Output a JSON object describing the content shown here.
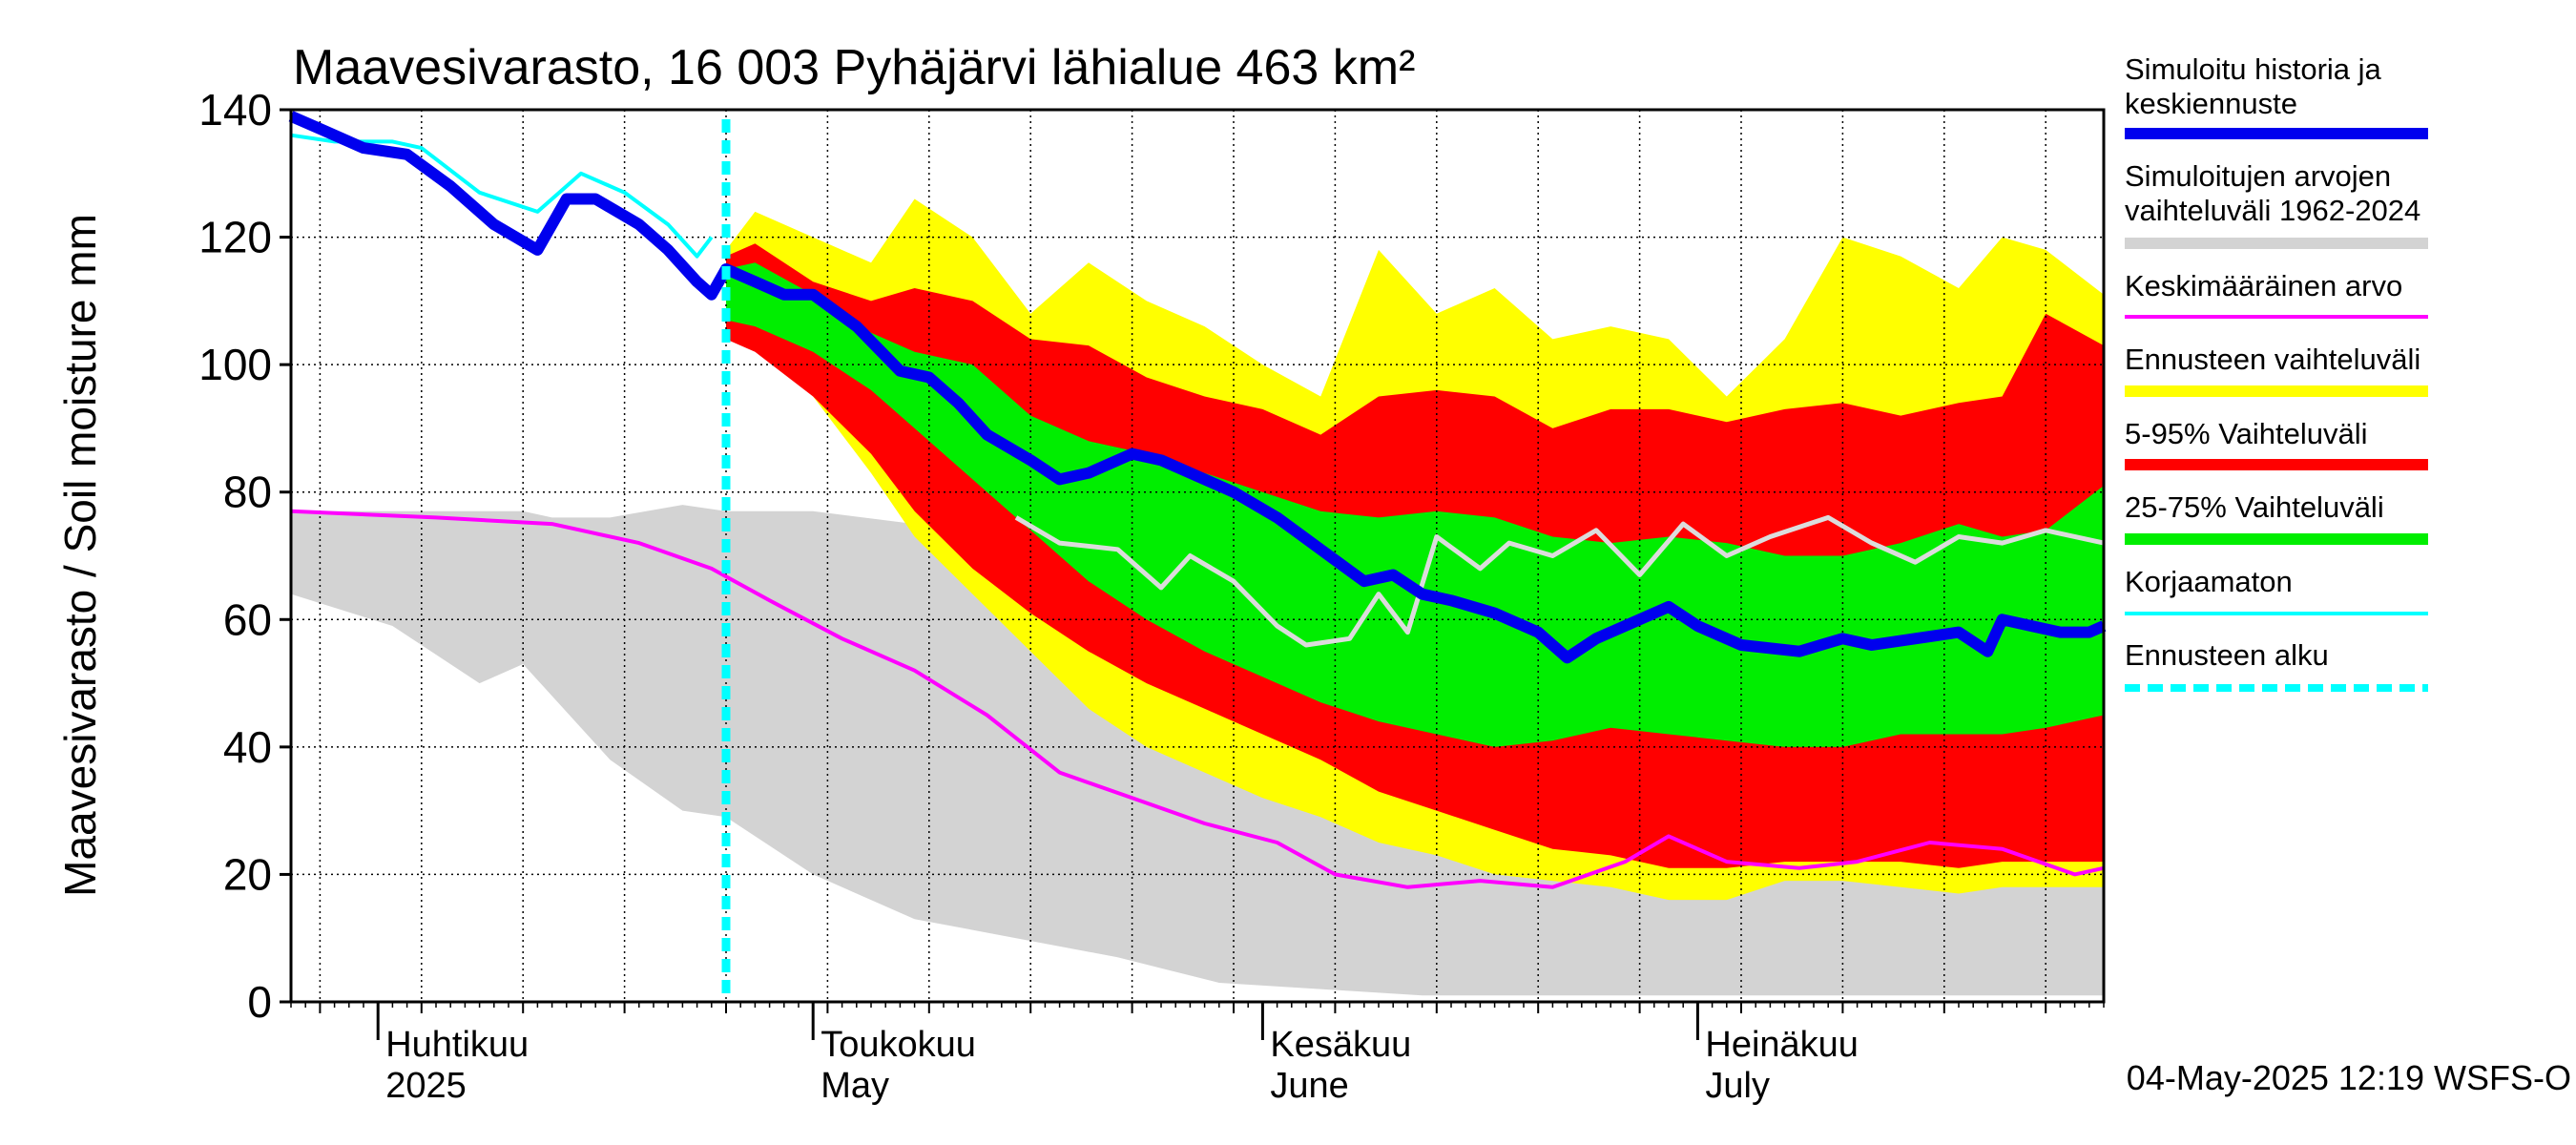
{
  "chart_data": {
    "type": "area",
    "title": "Maavesivarasto, 16 003 Pyhäjärvi lähialue 463 km²",
    "ylabel": "Maavesivarasto / Soil moisture   mm",
    "ylim": [
      0,
      140
    ],
    "yticks": [
      0,
      20,
      40,
      60,
      80,
      100,
      120,
      140
    ],
    "x_start": "2025-03-26",
    "x_end": "2025-07-29",
    "forecast_start": "2025-04-25",
    "month_labels": [
      {
        "date": "2025-04-01",
        "fi": "Huhtikuu",
        "en": "2025"
      },
      {
        "date": "2025-05-01",
        "fi": "Toukokuu",
        "en": "May"
      },
      {
        "date": "2025-06-01",
        "fi": "Kesäkuu",
        "en": "June"
      },
      {
        "date": "2025-07-01",
        "fi": "Heinäkuu",
        "en": "July"
      }
    ],
    "timestamp": "04-May-2025 12:19 WSFS-O",
    "legend": [
      {
        "label": "Simuloitu historia ja keskiennuste",
        "color": "#0000ee",
        "style": "thick"
      },
      {
        "label": "Simuloitujen arvojen vaihteluväli 1962-2024",
        "color": "#d3d3d3",
        "style": "thick"
      },
      {
        "label": "Keskimääräinen arvo",
        "color": "#ff00ff",
        "style": "thin"
      },
      {
        "label": "Ennusteen vaihteluväli",
        "color": "#ffff00",
        "style": "thick"
      },
      {
        "label": "5-95% Vaihteluväli",
        "color": "#ff0000",
        "style": "thick"
      },
      {
        "label": "25-75% Vaihteluväli",
        "color": "#00ee00",
        "style": "thick"
      },
      {
        "label": "Korjaamaton",
        "color": "#00ffff",
        "style": "thin"
      },
      {
        "label": "Ennusteen alku",
        "color": "#00ffff",
        "style": "dashed"
      }
    ],
    "series": {
      "hist_range": [
        {
          "x": "2025-03-26",
          "lo": 64,
          "hi": 77
        },
        {
          "x": "2025-04-02",
          "lo": 59,
          "hi": 77
        },
        {
          "x": "2025-04-08",
          "lo": 50,
          "hi": 77
        },
        {
          "x": "2025-04-11",
          "lo": 53,
          "hi": 77
        },
        {
          "x": "2025-04-13",
          "lo": 48,
          "hi": 76
        },
        {
          "x": "2025-04-17",
          "lo": 38,
          "hi": 76
        },
        {
          "x": "2025-04-22",
          "lo": 30,
          "hi": 78
        },
        {
          "x": "2025-04-25",
          "lo": 29,
          "hi": 77
        },
        {
          "x": "2025-05-01",
          "lo": 20,
          "hi": 77
        },
        {
          "x": "2025-05-08",
          "lo": 13,
          "hi": 75
        },
        {
          "x": "2025-05-15",
          "lo": 10,
          "hi": 73
        },
        {
          "x": "2025-05-22",
          "lo": 7,
          "hi": 74
        },
        {
          "x": "2025-05-29",
          "lo": 3,
          "hi": 75
        },
        {
          "x": "2025-06-05",
          "lo": 2,
          "hi": 73
        },
        {
          "x": "2025-06-12",
          "lo": 1,
          "hi": 70
        },
        {
          "x": "2025-06-19",
          "lo": 1,
          "hi": 65
        },
        {
          "x": "2025-06-26",
          "lo": 1,
          "hi": 45
        },
        {
          "x": "2025-07-03",
          "lo": 1,
          "hi": 30
        },
        {
          "x": "2025-07-10",
          "lo": 1,
          "hi": 22
        },
        {
          "x": "2025-07-17",
          "lo": 1,
          "hi": 20
        },
        {
          "x": "2025-07-24",
          "lo": 1,
          "hi": 20
        },
        {
          "x": "2025-07-29",
          "lo": 1,
          "hi": 19
        }
      ],
      "forecast_range": [
        {
          "x": "2025-04-25",
          "lo": 105,
          "hi": 118
        },
        {
          "x": "2025-04-27",
          "lo": 103,
          "hi": 124
        },
        {
          "x": "2025-05-01",
          "lo": 95,
          "hi": 120
        },
        {
          "x": "2025-05-05",
          "lo": 83,
          "hi": 116
        },
        {
          "x": "2025-05-08",
          "lo": 73,
          "hi": 126
        },
        {
          "x": "2025-05-12",
          "lo": 64,
          "hi": 120
        },
        {
          "x": "2025-05-16",
          "lo": 55,
          "hi": 108
        },
        {
          "x": "2025-05-20",
          "lo": 46,
          "hi": 116
        },
        {
          "x": "2025-05-24",
          "lo": 40,
          "hi": 110
        },
        {
          "x": "2025-05-28",
          "lo": 36,
          "hi": 106
        },
        {
          "x": "2025-06-01",
          "lo": 32,
          "hi": 100
        },
        {
          "x": "2025-06-05",
          "lo": 29,
          "hi": 95
        },
        {
          "x": "2025-06-09",
          "lo": 25,
          "hi": 118
        },
        {
          "x": "2025-06-13",
          "lo": 23,
          "hi": 108
        },
        {
          "x": "2025-06-17",
          "lo": 20,
          "hi": 112
        },
        {
          "x": "2025-06-21",
          "lo": 19,
          "hi": 104
        },
        {
          "x": "2025-06-25",
          "lo": 18,
          "hi": 106
        },
        {
          "x": "2025-06-29",
          "lo": 16,
          "hi": 104
        },
        {
          "x": "2025-07-03",
          "lo": 16,
          "hi": 95
        },
        {
          "x": "2025-07-07",
          "lo": 19,
          "hi": 104
        },
        {
          "x": "2025-07-11",
          "lo": 19,
          "hi": 120
        },
        {
          "x": "2025-07-15",
          "lo": 18,
          "hi": 117
        },
        {
          "x": "2025-07-19",
          "lo": 17,
          "hi": 112
        },
        {
          "x": "2025-07-22",
          "lo": 18,
          "hi": 120
        },
        {
          "x": "2025-07-25",
          "lo": 18,
          "hi": 118
        },
        {
          "x": "2025-07-29",
          "lo": 18,
          "hi": 111
        }
      ],
      "p5_95": [
        {
          "x": "2025-04-25",
          "lo": 104,
          "hi": 117
        },
        {
          "x": "2025-04-27",
          "lo": 102,
          "hi": 119
        },
        {
          "x": "2025-05-01",
          "lo": 95,
          "hi": 113
        },
        {
          "x": "2025-05-05",
          "lo": 86,
          "hi": 110
        },
        {
          "x": "2025-05-08",
          "lo": 77,
          "hi": 112
        },
        {
          "x": "2025-05-12",
          "lo": 68,
          "hi": 110
        },
        {
          "x": "2025-05-16",
          "lo": 61,
          "hi": 104
        },
        {
          "x": "2025-05-20",
          "lo": 55,
          "hi": 103
        },
        {
          "x": "2025-05-24",
          "lo": 50,
          "hi": 98
        },
        {
          "x": "2025-05-28",
          "lo": 46,
          "hi": 95
        },
        {
          "x": "2025-06-01",
          "lo": 42,
          "hi": 93
        },
        {
          "x": "2025-06-05",
          "lo": 38,
          "hi": 89
        },
        {
          "x": "2025-06-09",
          "lo": 33,
          "hi": 95
        },
        {
          "x": "2025-06-13",
          "lo": 30,
          "hi": 96
        },
        {
          "x": "2025-06-17",
          "lo": 27,
          "hi": 95
        },
        {
          "x": "2025-06-21",
          "lo": 24,
          "hi": 90
        },
        {
          "x": "2025-06-25",
          "lo": 23,
          "hi": 93
        },
        {
          "x": "2025-06-29",
          "lo": 21,
          "hi": 93
        },
        {
          "x": "2025-07-03",
          "lo": 21,
          "hi": 91
        },
        {
          "x": "2025-07-07",
          "lo": 22,
          "hi": 93
        },
        {
          "x": "2025-07-11",
          "lo": 22,
          "hi": 94
        },
        {
          "x": "2025-07-15",
          "lo": 22,
          "hi": 92
        },
        {
          "x": "2025-07-19",
          "lo": 21,
          "hi": 94
        },
        {
          "x": "2025-07-22",
          "lo": 22,
          "hi": 95
        },
        {
          "x": "2025-07-25",
          "lo": 22,
          "hi": 108
        },
        {
          "x": "2025-07-29",
          "lo": 22,
          "hi": 103
        }
      ],
      "p25_75": [
        {
          "x": "2025-04-25",
          "lo": 107,
          "hi": 115
        },
        {
          "x": "2025-04-27",
          "lo": 106,
          "hi": 116
        },
        {
          "x": "2025-05-01",
          "lo": 102,
          "hi": 111
        },
        {
          "x": "2025-05-05",
          "lo": 96,
          "hi": 105
        },
        {
          "x": "2025-05-08",
          "lo": 90,
          "hi": 102
        },
        {
          "x": "2025-05-12",
          "lo": 82,
          "hi": 100
        },
        {
          "x": "2025-05-16",
          "lo": 74,
          "hi": 92
        },
        {
          "x": "2025-05-20",
          "lo": 66,
          "hi": 88
        },
        {
          "x": "2025-05-24",
          "lo": 60,
          "hi": 86
        },
        {
          "x": "2025-05-28",
          "lo": 55,
          "hi": 83
        },
        {
          "x": "2025-06-01",
          "lo": 51,
          "hi": 80
        },
        {
          "x": "2025-06-05",
          "lo": 47,
          "hi": 77
        },
        {
          "x": "2025-06-09",
          "lo": 44,
          "hi": 76
        },
        {
          "x": "2025-06-13",
          "lo": 42,
          "hi": 77
        },
        {
          "x": "2025-06-17",
          "lo": 40,
          "hi": 76
        },
        {
          "x": "2025-06-21",
          "lo": 41,
          "hi": 73
        },
        {
          "x": "2025-06-25",
          "lo": 43,
          "hi": 72
        },
        {
          "x": "2025-06-29",
          "lo": 42,
          "hi": 73
        },
        {
          "x": "2025-07-03",
          "lo": 41,
          "hi": 72
        },
        {
          "x": "2025-07-07",
          "lo": 40,
          "hi": 70
        },
        {
          "x": "2025-07-11",
          "lo": 40,
          "hi": 70
        },
        {
          "x": "2025-07-15",
          "lo": 42,
          "hi": 72
        },
        {
          "x": "2025-07-19",
          "lo": 42,
          "hi": 75
        },
        {
          "x": "2025-07-22",
          "lo": 42,
          "hi": 73
        },
        {
          "x": "2025-07-25",
          "lo": 43,
          "hi": 74
        },
        {
          "x": "2025-07-29",
          "lo": 45,
          "hi": 81
        }
      ],
      "simulated": [
        {
          "x": "2025-03-26",
          "y": 139
        },
        {
          "x": "2025-03-28",
          "y": 137
        },
        {
          "x": "2025-03-31",
          "y": 134
        },
        {
          "x": "2025-04-03",
          "y": 133
        },
        {
          "x": "2025-04-06",
          "y": 128
        },
        {
          "x": "2025-04-09",
          "y": 122
        },
        {
          "x": "2025-04-12",
          "y": 118
        },
        {
          "x": "2025-04-14",
          "y": 126
        },
        {
          "x": "2025-04-16",
          "y": 126
        },
        {
          "x": "2025-04-19",
          "y": 122
        },
        {
          "x": "2025-04-21",
          "y": 118
        },
        {
          "x": "2025-04-23",
          "y": 113
        },
        {
          "x": "2025-04-24",
          "y": 111
        },
        {
          "x": "2025-04-25",
          "y": 115
        },
        {
          "x": "2025-04-27",
          "y": 113
        },
        {
          "x": "2025-04-29",
          "y": 111
        },
        {
          "x": "2025-05-01",
          "y": 111
        },
        {
          "x": "2025-05-04",
          "y": 106
        },
        {
          "x": "2025-05-07",
          "y": 99
        },
        {
          "x": "2025-05-09",
          "y": 98
        },
        {
          "x": "2025-05-11",
          "y": 94
        },
        {
          "x": "2025-05-13",
          "y": 89
        },
        {
          "x": "2025-05-16",
          "y": 85
        },
        {
          "x": "2025-05-18",
          "y": 82
        },
        {
          "x": "2025-05-20",
          "y": 83
        },
        {
          "x": "2025-05-23",
          "y": 86
        },
        {
          "x": "2025-05-25",
          "y": 85
        },
        {
          "x": "2025-05-28",
          "y": 82
        },
        {
          "x": "2025-05-30",
          "y": 80
        },
        {
          "x": "2025-06-02",
          "y": 76
        },
        {
          "x": "2025-06-05",
          "y": 71
        },
        {
          "x": "2025-06-08",
          "y": 66
        },
        {
          "x": "2025-06-10",
          "y": 67
        },
        {
          "x": "2025-06-12",
          "y": 64
        },
        {
          "x": "2025-06-14",
          "y": 63
        },
        {
          "x": "2025-06-17",
          "y": 61
        },
        {
          "x": "2025-06-20",
          "y": 58
        },
        {
          "x": "2025-06-22",
          "y": 54
        },
        {
          "x": "2025-06-24",
          "y": 57
        },
        {
          "x": "2025-06-27",
          "y": 60
        },
        {
          "x": "2025-06-29",
          "y": 62
        },
        {
          "x": "2025-07-01",
          "y": 59
        },
        {
          "x": "2025-07-04",
          "y": 56
        },
        {
          "x": "2025-07-08",
          "y": 55
        },
        {
          "x": "2025-07-11",
          "y": 57
        },
        {
          "x": "2025-07-13",
          "y": 56
        },
        {
          "x": "2025-07-16",
          "y": 57
        },
        {
          "x": "2025-07-19",
          "y": 58
        },
        {
          "x": "2025-07-21",
          "y": 55
        },
        {
          "x": "2025-07-22",
          "y": 60
        },
        {
          "x": "2025-07-24",
          "y": 59
        },
        {
          "x": "2025-07-26",
          "y": 58
        },
        {
          "x": "2025-07-28",
          "y": 58
        },
        {
          "x": "2025-07-29",
          "y": 59
        }
      ],
      "uncorrected": [
        {
          "x": "2025-03-26",
          "y": 136
        },
        {
          "x": "2025-03-29",
          "y": 135
        },
        {
          "x": "2025-04-02",
          "y": 135
        },
        {
          "x": "2025-04-04",
          "y": 134
        },
        {
          "x": "2025-04-08",
          "y": 127
        },
        {
          "x": "2025-04-12",
          "y": 124
        },
        {
          "x": "2025-04-15",
          "y": 130
        },
        {
          "x": "2025-04-18",
          "y": 127
        },
        {
          "x": "2025-04-21",
          "y": 122
        },
        {
          "x": "2025-04-23",
          "y": 117
        },
        {
          "x": "2025-04-24",
          "y": 120
        }
      ],
      "mean": [
        {
          "x": "2025-03-26",
          "y": 77
        },
        {
          "x": "2025-04-05",
          "y": 76
        },
        {
          "x": "2025-04-13",
          "y": 75
        },
        {
          "x": "2025-04-19",
          "y": 72
        },
        {
          "x": "2025-04-24",
          "y": 68
        },
        {
          "x": "2025-04-28",
          "y": 63
        },
        {
          "x": "2025-05-03",
          "y": 57
        },
        {
          "x": "2025-05-08",
          "y": 52
        },
        {
          "x": "2025-05-13",
          "y": 45
        },
        {
          "x": "2025-05-18",
          "y": 36
        },
        {
          "x": "2025-05-23",
          "y": 32
        },
        {
          "x": "2025-05-28",
          "y": 28
        },
        {
          "x": "2025-06-02",
          "y": 25
        },
        {
          "x": "2025-06-06",
          "y": 20
        },
        {
          "x": "2025-06-11",
          "y": 18
        },
        {
          "x": "2025-06-16",
          "y": 19
        },
        {
          "x": "2025-06-21",
          "y": 18
        },
        {
          "x": "2025-06-26",
          "y": 22
        },
        {
          "x": "2025-06-29",
          "y": 26
        },
        {
          "x": "2025-07-03",
          "y": 22
        },
        {
          "x": "2025-07-08",
          "y": 21
        },
        {
          "x": "2025-07-12",
          "y": 22
        },
        {
          "x": "2025-07-17",
          "y": 25
        },
        {
          "x": "2025-07-22",
          "y": 24
        },
        {
          "x": "2025-07-27",
          "y": 20
        },
        {
          "x": "2025-07-29",
          "y": 21
        }
      ],
      "median_hist": [
        {
          "x": "2025-05-15",
          "y": 76
        },
        {
          "x": "2025-05-18",
          "y": 72
        },
        {
          "x": "2025-05-22",
          "y": 71
        },
        {
          "x": "2025-05-25",
          "y": 65
        },
        {
          "x": "2025-05-27",
          "y": 70
        },
        {
          "x": "2025-05-30",
          "y": 66
        },
        {
          "x": "2025-06-02",
          "y": 59
        },
        {
          "x": "2025-06-04",
          "y": 56
        },
        {
          "x": "2025-06-07",
          "y": 57
        },
        {
          "x": "2025-06-09",
          "y": 64
        },
        {
          "x": "2025-06-11",
          "y": 58
        },
        {
          "x": "2025-06-13",
          "y": 73
        },
        {
          "x": "2025-06-16",
          "y": 68
        },
        {
          "x": "2025-06-18",
          "y": 72
        },
        {
          "x": "2025-06-21",
          "y": 70
        },
        {
          "x": "2025-06-24",
          "y": 74
        },
        {
          "x": "2025-06-27",
          "y": 67
        },
        {
          "x": "2025-06-30",
          "y": 75
        },
        {
          "x": "2025-07-03",
          "y": 70
        },
        {
          "x": "2025-07-06",
          "y": 73
        },
        {
          "x": "2025-07-10",
          "y": 76
        },
        {
          "x": "2025-07-13",
          "y": 72
        },
        {
          "x": "2025-07-16",
          "y": 69
        },
        {
          "x": "2025-07-19",
          "y": 73
        },
        {
          "x": "2025-07-22",
          "y": 72
        },
        {
          "x": "2025-07-25",
          "y": 74
        },
        {
          "x": "2025-07-29",
          "y": 72
        }
      ]
    }
  }
}
